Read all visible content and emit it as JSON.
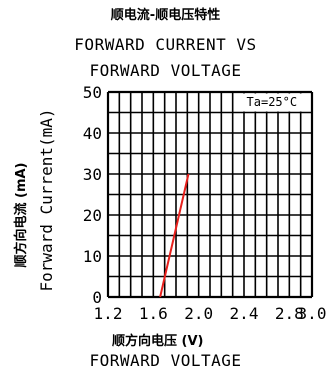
{
  "title_cn": "顺电流-顺电压特性",
  "title_en_line1": "FORWARD CURRENT VS",
  "title_en_line2": "FORWARD VOLTAGE",
  "xlabel_cn": "顺方向电压 (V)",
  "xlabel_en": "FORWARD VOLTAGE",
  "ylabel_cn": "顺方向电流 (mA)",
  "ylabel_en": "Forward Current(mA)",
  "condition": "Ta=25°C",
  "colors": {
    "line": "#e8201c",
    "grid": "#000000"
  },
  "chart_data": {
    "type": "line",
    "title": "FORWARD CURRENT VS FORWARD VOLTAGE",
    "xlabel": "FORWARD VOLTAGE",
    "ylabel": "Forward Current(mA)",
    "xlim": [
      1.2,
      3.0
    ],
    "ylim": [
      0,
      50
    ],
    "xticks": [
      "1.2",
      "1.6",
      "2.0",
      "2.4",
      "2.8",
      "3.0"
    ],
    "xtick_values": [
      1.2,
      1.6,
      2.0,
      2.4,
      2.8,
      3.0
    ],
    "yticks": [
      "0",
      "10",
      "20",
      "30",
      "40",
      "50"
    ],
    "ytick_values": [
      0,
      10,
      20,
      30,
      40,
      50
    ],
    "x_grid_step": 0.1,
    "y_grid_step": 5,
    "grid": true,
    "annotation": "Ta=25°C",
    "annotation_placement": "top-right",
    "series": [
      {
        "x": [
          1.66,
          1.91
        ],
        "y": [
          0,
          30
        ]
      }
    ]
  }
}
